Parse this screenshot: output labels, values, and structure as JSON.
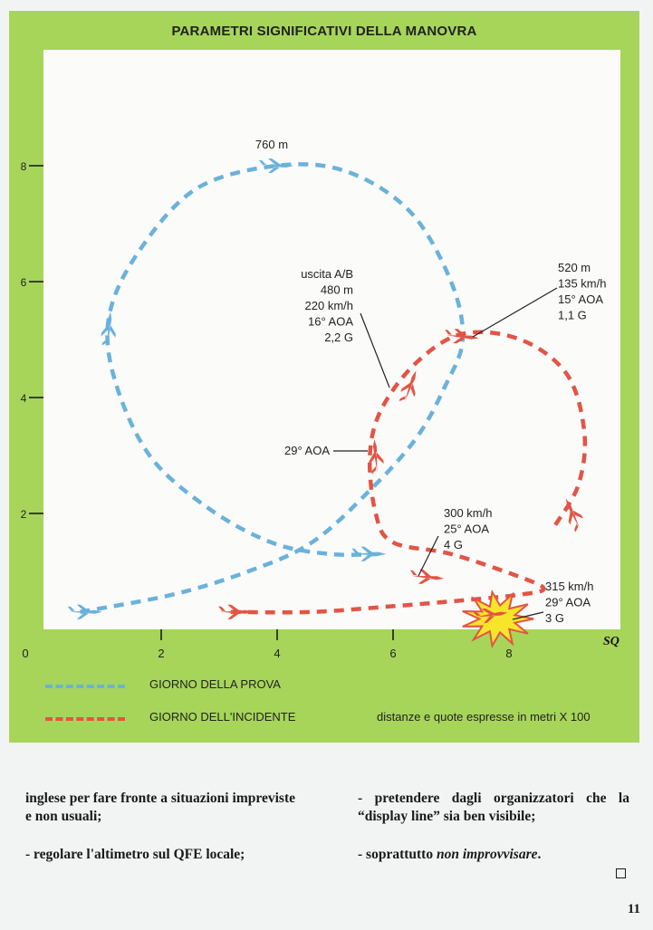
{
  "figure": {
    "title": "PARAMETRI SIGNIFICATIVI DELLA MANOVRA",
    "signature": "SQ",
    "legend": [
      {
        "label": "GIORNO DELLA PROVA",
        "color": "#6ab2dc"
      },
      {
        "label": "GIORNO DELL'INCIDENTE",
        "color": "#e35445"
      }
    ],
    "note": "distanze e quote espresse in metri X 100"
  },
  "chart_data": {
    "type": "line",
    "xlim": [
      0,
      10
    ],
    "ylim": [
      0,
      9.2
    ],
    "x_ticks": [
      "0",
      "2",
      "4",
      "6",
      "8"
    ],
    "y_ticks": [
      "2",
      "4",
      "6",
      "8"
    ],
    "series": [
      {
        "name": "GIORNO DELLA PROVA",
        "color": "#6ab2dc",
        "points": [
          [
            0.6,
            0.3
          ],
          [
            2.2,
            0.6
          ],
          [
            3.5,
            1.0
          ],
          [
            4.6,
            1.5
          ],
          [
            5.6,
            2.4
          ],
          [
            6.4,
            3.3
          ],
          [
            6.9,
            4.2
          ],
          [
            7.2,
            5.0
          ],
          [
            7.0,
            6.0
          ],
          [
            6.3,
            7.2
          ],
          [
            5.2,
            7.9
          ],
          [
            4.0,
            8.0
          ],
          [
            2.6,
            7.6
          ],
          [
            1.6,
            6.5
          ],
          [
            1.1,
            5.4
          ],
          [
            1.2,
            4.3
          ],
          [
            1.8,
            3.0
          ],
          [
            2.8,
            2.1
          ],
          [
            3.9,
            1.5
          ],
          [
            4.9,
            1.3
          ],
          [
            5.8,
            1.3
          ]
        ]
      },
      {
        "name": "GIORNO DELL'INCIDENTE",
        "color": "#e35445",
        "points": [
          [
            3.2,
            0.3
          ],
          [
            4.6,
            0.3
          ],
          [
            6.0,
            0.4
          ],
          [
            7.2,
            0.5
          ],
          [
            8.2,
            0.6
          ],
          [
            8.6,
            0.7
          ],
          [
            8.2,
            0.9
          ],
          [
            7.0,
            1.3
          ],
          [
            6.0,
            1.5
          ],
          [
            5.7,
            2.0
          ],
          [
            5.6,
            3.0
          ],
          [
            5.8,
            3.8
          ],
          [
            6.4,
            4.6
          ],
          [
            7.2,
            5.1
          ],
          [
            8.2,
            5.0
          ],
          [
            9.0,
            4.4
          ],
          [
            9.3,
            3.4
          ],
          [
            9.2,
            2.5
          ],
          [
            8.8,
            1.8
          ]
        ]
      }
    ],
    "annotations": [
      {
        "text": [
          "760 m"
        ]
      },
      {
        "text": [
          "uscita A/B",
          "480 m",
          "220 km/h",
          "16° AOA",
          "2,2 G"
        ]
      },
      {
        "text": [
          "520 m",
          "135 km/h",
          "15° AOA",
          "1,1 G"
        ]
      },
      {
        "text": [
          "29° AOA"
        ]
      },
      {
        "text": [
          "300 km/h",
          "25° AOA",
          "4 G"
        ]
      },
      {
        "text": [
          "315 km/h",
          "29° AOA",
          "3 G"
        ]
      }
    ]
  },
  "article": {
    "col1_p1": "inglese per fare fronte a situazioni impreviste e non usuali;",
    "col1_p2": "-    regolare l'altimetro sul QFE locale;",
    "col2_p1": "-    pretendere dagli organizzatori che la “display line” sia ben visibile;",
    "col2_p2_a": "-    soprattutto ",
    "col2_p2_b": "non improvvisare",
    "col2_p2_c": ".",
    "page_number": "11"
  }
}
